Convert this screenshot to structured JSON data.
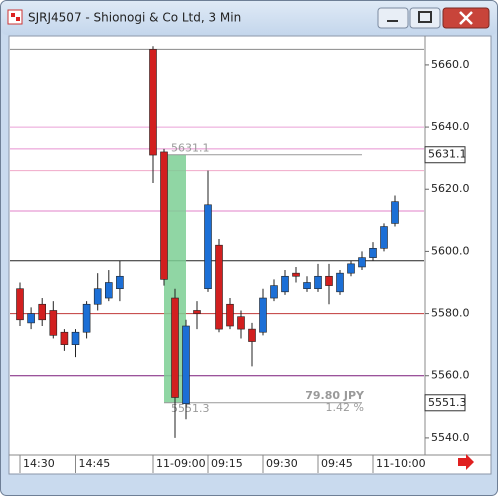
{
  "chart_data": {
    "type": "candlestick",
    "title": "SJRJ4507 - Shionogi & Co Ltd, 3 Min",
    "categories": [
      "14:30",
      null,
      null,
      null,
      null,
      "14:45",
      null,
      null,
      null,
      null,
      "11-09:00",
      null,
      null,
      null,
      null,
      "09:15",
      null,
      null,
      null,
      null,
      "09:30",
      null,
      null,
      null,
      null,
      "09:45",
      null,
      null,
      null,
      null,
      "11-10:00",
      null,
      null
    ],
    "open": [
      5588,
      5577,
      5583,
      5581,
      5574,
      5570,
      5574,
      5583,
      5585,
      5588,
      5665,
      5632,
      5585,
      5551,
      5581,
      5588,
      5602,
      5583,
      5579,
      5575,
      5574,
      5585,
      5587,
      5593,
      5588,
      5588,
      5592,
      5587,
      5593,
      5595,
      5598,
      5601,
      5609
    ],
    "high": [
      5590,
      5582,
      5585,
      5584,
      5575,
      5575,
      5584,
      5593,
      5594,
      5597,
      5666,
      5633,
      5588,
      5578,
      5584,
      5626,
      5604,
      5585,
      5581,
      5577,
      5588,
      5591,
      5594,
      5595,
      5592,
      5596,
      5596,
      5594,
      5597,
      5600,
      5603,
      5609,
      5618
    ],
    "low": [
      5576,
      5575,
      5576,
      5572,
      5568,
      5566,
      5572,
      5581,
      5584,
      5584,
      5622,
      5589,
      5540,
      5546,
      5575,
      5587,
      5574,
      5575,
      5572,
      5563,
      5573,
      5584,
      5586,
      5590,
      5587,
      5587,
      5583,
      5586,
      5592,
      5594,
      5597,
      5600,
      5608
    ],
    "close": [
      5578,
      5580,
      5578,
      5573,
      5570,
      5574,
      5583,
      5588,
      5590,
      5592,
      5631,
      5591,
      5553,
      5576,
      5580,
      5615,
      5575,
      5576,
      5575,
      5571,
      5585,
      5589,
      5592,
      5592,
      5590,
      5592,
      5589,
      5593,
      5596,
      5598,
      5601,
      5608,
      5616
    ],
    "up_color": "#1c6fd6",
    "down_color": "#d21f1f",
    "ylim": [
      5534.5,
      5669.3
    ],
    "yticks": [
      {
        "value": 5540,
        "label": "5540.0"
      },
      {
        "value": 5560,
        "label": "5560.0"
      },
      {
        "value": 5580,
        "label": "5580.0"
      },
      {
        "value": 5600,
        "label": "5600.0"
      },
      {
        "value": 5620,
        "label": "5620.0"
      },
      {
        "value": 5640,
        "label": "5640.0"
      },
      {
        "value": 5660,
        "label": "5660.0"
      }
    ],
    "levels": [
      {
        "value": 5665,
        "color": "#8a8a8a"
      },
      {
        "value": 5640,
        "color": "#eaa0d8"
      },
      {
        "value": 5633,
        "color": "#e890d0"
      },
      {
        "value": 5626,
        "color": "#f0a8c8"
      },
      {
        "value": 5613,
        "color": "#e080c8"
      },
      {
        "value": 5597,
        "color": "#222222"
      },
      {
        "value": 5580,
        "color": "#c03838"
      },
      {
        "value": 5560,
        "color": "#7a1a7a"
      }
    ],
    "measure": {
      "start": 5631.1,
      "end": 5551.3,
      "change_label": "79.80 JPY",
      "change_pct_label": "1.42 %",
      "color": "#7ccf94"
    }
  }
}
